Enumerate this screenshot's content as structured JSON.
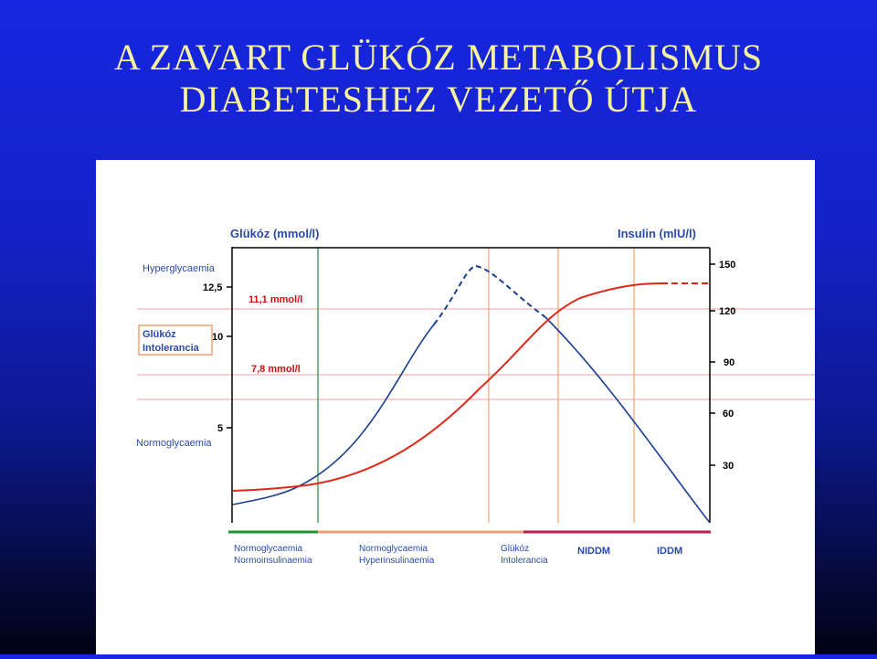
{
  "slide": {
    "title_line1": "A ZAVART GLÜKÓZ METABOLISMUS",
    "title_line2": "DIABETESHEZ VEZETŐ ÚTJA"
  },
  "chart_data": {
    "type": "line",
    "left_axis": {
      "label": "Glükóz (mmol/l)",
      "ticks": [
        "12,5",
        "10",
        "5"
      ]
    },
    "right_axis": {
      "label": "Insulin (mlU/l)",
      "ticks": [
        "150",
        "120",
        "90",
        "60",
        "30"
      ]
    },
    "zones": {
      "hyperglycaemia": "Hyperglycaemia",
      "glucose_intolerance_line1": "Glükóz",
      "glucose_intolerance_line2": "Intolerancia",
      "normoglycaemia": "Normoglycaemia"
    },
    "thresholds": {
      "upper": "11,1 mmol/l",
      "lower": "7,8 mmol/l"
    },
    "series": [
      {
        "color": "#1a3f8f"
      },
      {
        "color": "#e02818"
      }
    ],
    "phases": [
      {
        "line1": "Normoglycaemia",
        "line2": "Normoinsulinaemia",
        "color": "#1e9630"
      },
      {
        "line1": "Normoglycaemia",
        "line2": "Hyperinsulinaemia",
        "color": "#f0a070"
      },
      {
        "line1": "Glükóz",
        "line2": "Intolerancia",
        "color": "#f0a070"
      },
      {
        "line1": "NIDDM",
        "color": "#c01850"
      },
      {
        "line1": "IDDM",
        "color": "#c01850"
      }
    ],
    "colors": {
      "grid": "#f0a0a0",
      "frame": "#000000",
      "green_divider": "#2a8a3a",
      "orange_divider": "#f0a070",
      "label_blue": "#2a4aa8",
      "threshold_red": "#cc1010"
    }
  }
}
